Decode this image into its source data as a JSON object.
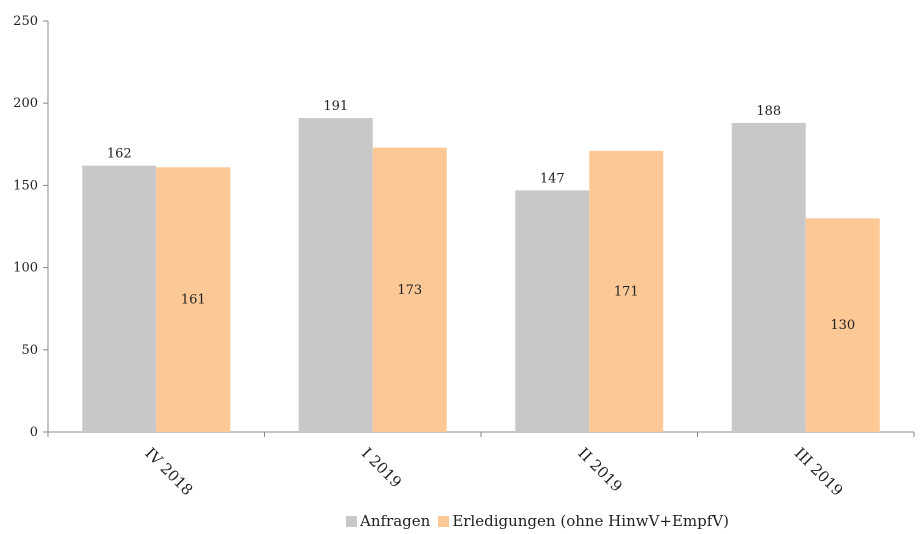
{
  "chart_data": {
    "type": "bar",
    "categories": [
      "IV 2018",
      "I 2019",
      "II 2019",
      "III 2019"
    ],
    "series": [
      {
        "name": "Anfragen",
        "values": [
          162,
          191,
          147,
          188
        ],
        "color": "#c8c8c8",
        "label_position": "above"
      },
      {
        "name": "Erledigungen (ohne HinwV+EmpfV)",
        "values": [
          161,
          173,
          171,
          130
        ],
        "color": "#fcc896",
        "label_position": "inside"
      }
    ],
    "ylim": [
      0,
      250
    ],
    "yticks": [
      0,
      50,
      100,
      150,
      200,
      250
    ],
    "grid": false,
    "legend_position": "bottom",
    "title": "",
    "xlabel": "",
    "ylabel": ""
  }
}
